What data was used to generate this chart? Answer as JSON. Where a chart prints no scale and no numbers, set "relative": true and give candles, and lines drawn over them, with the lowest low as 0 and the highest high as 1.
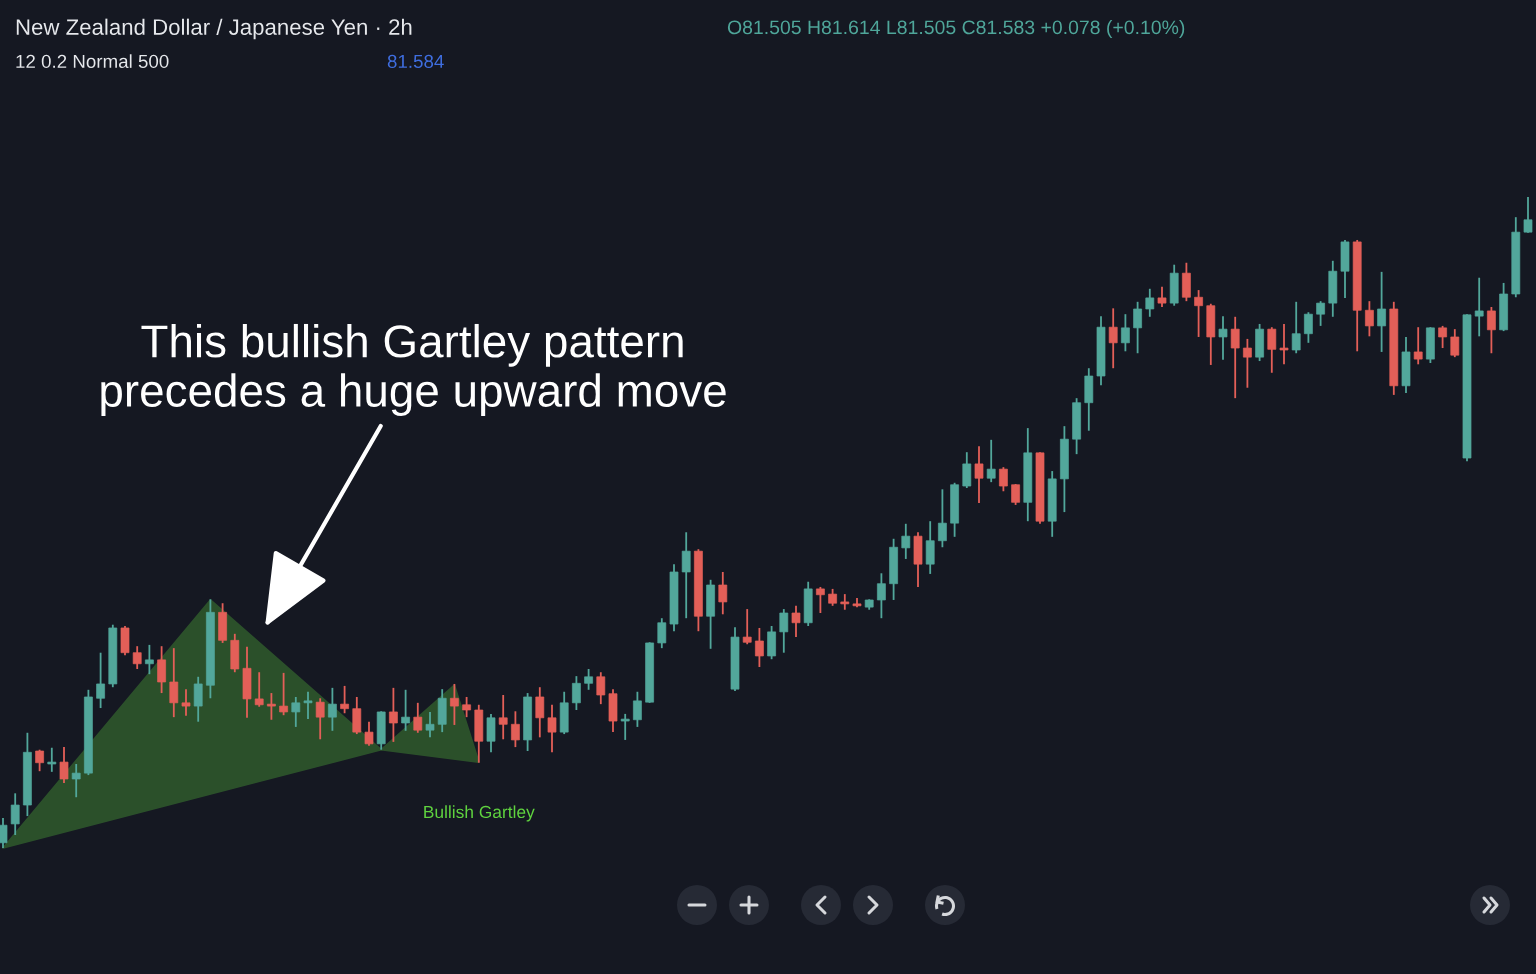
{
  "chart_data": {
    "type": "candlestick",
    "title": "New Zealand Dollar / Japanese Yen · 2h",
    "subtitle": "O81.505 H81.614 L81.505 C81.583 +0.078 (+0.10%)",
    "annotations": [
      "12 0.2 Normal 500",
      "81.584",
      "This bullish Gartley pattern\nprecedes a huge upward move"
    ],
    "relative": true,
    "categories": [
      null,
      null,
      null,
      null,
      null,
      null,
      null,
      null,
      null,
      null,
      null,
      null,
      null,
      null,
      null,
      null,
      null,
      null,
      null,
      null,
      null,
      null,
      null,
      null,
      null,
      null,
      null,
      null,
      null,
      null,
      null,
      null,
      null,
      null,
      null,
      null,
      null,
      null,
      null,
      null,
      null,
      null,
      null,
      null,
      null,
      null,
      null,
      null,
      null,
      null,
      null,
      null,
      null,
      null,
      null,
      null,
      null,
      null,
      null,
      null,
      null,
      null,
      null,
      null,
      null,
      null,
      null,
      null,
      null,
      null,
      null,
      null,
      null,
      null,
      null,
      null,
      null,
      null,
      null,
      null,
      null,
      null,
      null,
      null,
      null,
      null,
      null,
      null,
      null,
      null,
      null,
      null,
      null,
      null,
      null,
      null,
      null,
      null,
      null,
      null,
      null,
      null,
      null,
      null,
      null,
      null,
      null,
      null,
      null,
      null,
      null,
      null,
      null,
      null,
      null,
      null,
      null,
      null,
      null,
      null,
      null,
      null,
      null,
      null,
      null,
      null
    ],
    "series": [
      {
        "colors": [
          "#52a79b",
          "#52a79b",
          "#52a79b",
          "#e35f58",
          "#52a79b",
          "#e35f58",
          "#52a79b",
          "#52a79b",
          "#52a79b",
          "#52a79b",
          "#e35f58",
          "#e35f58",
          "#52a79b",
          "#e35f58",
          "#e35f58",
          "#e35f58",
          "#52a79b",
          "#52a79b",
          "#e35f58",
          "#e35f58",
          "#e35f58",
          "#e35f58",
          "#e35f58",
          "#e35f58",
          "#52a79b",
          "#52a79b",
          "#e35f58",
          "#52a79b",
          "#e35f58",
          "#e35f58",
          "#e35f58",
          "#52a79b",
          "#e35f58",
          "#52a79b",
          "#e35f58",
          "#52a79b",
          "#52a79b",
          "#e35f58",
          "#e35f58",
          "#e35f58",
          "#52a79b",
          "#e35f58",
          "#e35f58",
          "#52a79b",
          "#e35f58",
          "#e35f58",
          "#52a79b",
          "#52a79b",
          "#52a79b",
          "#e35f58",
          "#e35f58",
          "#52a79b",
          "#52a79b",
          "#52a79b",
          "#52a79b",
          "#52a79b",
          "#52a79b",
          "#e35f58",
          "#52a79b",
          "#e35f58",
          "#52a79b",
          "#e35f58",
          "#e35f58",
          "#52a79b",
          "#52a79b",
          "#e35f58",
          "#52a79b",
          "#e35f58",
          "#e35f58",
          "#e35f58",
          "#e35f58",
          "#52a79b",
          "#52a79b",
          "#52a79b",
          "#52a79b",
          "#e35f58",
          "#52a79b",
          "#52a79b",
          "#52a79b",
          "#52a79b",
          "#e35f58",
          "#52a79b",
          "#e35f58",
          "#e35f58",
          "#52a79b",
          "#e35f58",
          "#52a79b",
          "#52a79b",
          "#52a79b",
          "#52a79b",
          "#52a79b",
          "#e35f58",
          "#52a79b",
          "#52a79b",
          "#52a79b",
          "#e35f58",
          "#52a79b",
          "#e35f58",
          "#e35f58",
          "#e35f58",
          "#52a79b",
          "#e35f58",
          "#e35f58",
          "#52a79b",
          "#e35f58",
          "#e35f58",
          "#52a79b",
          "#52a79b",
          "#52a79b",
          "#52a79b",
          "#52a79b",
          "#e35f58",
          "#e35f58",
          "#52a79b",
          "#e35f58",
          "#52a79b",
          "#e35f58",
          "#52a79b",
          "#e35f58",
          "#e35f58",
          "#52a79b",
          "#52a79b",
          "#e35f58",
          "#52a79b",
          "#52a79b",
          "#52a79b"
        ],
        "ohlc": [
          [
            0.008,
            0.046,
            0,
            0.035
          ],
          [
            0.037,
            0.084,
            0.02,
            0.066
          ],
          [
            0.066,
            0.177,
            0.049,
            0.147
          ],
          [
            0.149,
            0.151,
            0.118,
            0.131
          ],
          [
            0.129,
            0.154,
            0.117,
            0.132
          ],
          [
            0.132,
            0.155,
            0.1,
            0.106
          ],
          [
            0.106,
            0.129,
            0.078,
            0.115
          ],
          [
            0.115,
            0.243,
            0.112,
            0.232
          ],
          [
            0.23,
            0.3,
            0.215,
            0.252
          ],
          [
            0.252,
            0.343,
            0.247,
            0.338
          ],
          [
            0.338,
            0.341,
            0.296,
            0.3
          ],
          [
            0.3,
            0.31,
            0.275,
            0.283
          ],
          [
            0.283,
            0.312,
            0.267,
            0.289
          ],
          [
            0.289,
            0.31,
            0.238,
            0.255
          ],
          [
            0.255,
            0.307,
            0.201,
            0.223
          ],
          [
            0.223,
            0.244,
            0.203,
            0.218
          ],
          [
            0.218,
            0.263,
            0.194,
            0.252
          ],
          [
            0.25,
            0.382,
            0.23,
            0.362
          ],
          [
            0.362,
            0.376,
            0.315,
            0.319
          ],
          [
            0.319,
            0.329,
            0.27,
            0.275
          ],
          [
            0.276,
            0.309,
            0.2,
            0.229
          ],
          [
            0.229,
            0.27,
            0.217,
            0.22
          ],
          [
            0.221,
            0.238,
            0.197,
            0.218
          ],
          [
            0.218,
            0.269,
            0.204,
            0.209
          ],
          [
            0.209,
            0.232,
            0.186,
            0.223
          ],
          [
            0.223,
            0.24,
            0.198,
            0.226
          ],
          [
            0.224,
            0.23,
            0.167,
            0.201
          ],
          [
            0.201,
            0.246,
            0.18,
            0.221
          ],
          [
            0.221,
            0.249,
            0.207,
            0.214
          ],
          [
            0.214,
            0.232,
            0.175,
            0.178
          ],
          [
            0.178,
            0.194,
            0.157,
            0.16
          ],
          [
            0.16,
            0.21,
            0.151,
            0.209
          ],
          [
            0.209,
            0.246,
            0.163,
            0.192
          ],
          [
            0.192,
            0.243,
            0.18,
            0.201
          ],
          [
            0.201,
            0.223,
            0.177,
            0.181
          ],
          [
            0.181,
            0.209,
            0.17,
            0.19
          ],
          [
            0.19,
            0.244,
            0.178,
            0.23
          ],
          [
            0.23,
            0.252,
            0.189,
            0.218
          ],
          [
            0.22,
            0.232,
            0.201,
            0.212
          ],
          [
            0.212,
            0.22,
            0.131,
            0.164
          ],
          [
            0.164,
            0.206,
            0.147,
            0.2
          ],
          [
            0.2,
            0.235,
            0.167,
            0.19
          ],
          [
            0.19,
            0.21,
            0.155,
            0.166
          ],
          [
            0.166,
            0.238,
            0.149,
            0.232
          ],
          [
            0.232,
            0.247,
            0.17,
            0.2
          ],
          [
            0.2,
            0.22,
            0.147,
            0.178
          ],
          [
            0.178,
            0.24,
            0.175,
            0.223
          ],
          [
            0.223,
            0.264,
            0.212,
            0.253
          ],
          [
            0.253,
            0.275,
            0.243,
            0.263
          ],
          [
            0.263,
            0.27,
            0.221,
            0.235
          ],
          [
            0.237,
            0.244,
            0.178,
            0.195
          ],
          [
            0.195,
            0.206,
            0.166,
            0.198
          ],
          [
            0.197,
            0.24,
            0.186,
            0.226
          ],
          [
            0.224,
            0.316,
            0.223,
            0.315
          ],
          [
            0.315,
            0.353,
            0.307,
            0.346
          ],
          [
            0.344,
            0.436,
            0.333,
            0.424
          ],
          [
            0.424,
            0.485,
            0.353,
            0.456
          ],
          [
            0.456,
            0.459,
            0.333,
            0.356
          ],
          [
            0.356,
            0.412,
            0.306,
            0.404
          ],
          [
            0.404,
            0.424,
            0.359,
            0.378
          ],
          [
            0.244,
            0.339,
            0.241,
            0.324
          ],
          [
            0.324,
            0.367,
            0.313,
            0.316
          ],
          [
            0.318,
            0.338,
            0.278,
            0.295
          ],
          [
            0.295,
            0.341,
            0.29,
            0.332
          ],
          [
            0.332,
            0.367,
            0.3,
            0.361
          ],
          [
            0.361,
            0.372,
            0.324,
            0.346
          ],
          [
            0.346,
            0.409,
            0.341,
            0.398
          ],
          [
            0.398,
            0.401,
            0.361,
            0.389
          ],
          [
            0.39,
            0.398,
            0.372,
            0.376
          ],
          [
            0.378,
            0.39,
            0.366,
            0.375
          ],
          [
            0.375,
            0.384,
            0.37,
            0.372
          ],
          [
            0.37,
            0.382,
            0.366,
            0.381
          ],
          [
            0.381,
            0.422,
            0.353,
            0.406
          ],
          [
            0.406,
            0.475,
            0.381,
            0.462
          ],
          [
            0.461,
            0.498,
            0.444,
            0.479
          ],
          [
            0.479,
            0.485,
            0.401,
            0.436
          ],
          [
            0.436,
            0.502,
            0.421,
            0.472
          ],
          [
            0.472,
            0.551,
            0.462,
            0.499
          ],
          [
            0.499,
            0.561,
            0.478,
            0.558
          ],
          [
            0.556,
            0.608,
            0.553,
            0.59
          ],
          [
            0.59,
            0.617,
            0.53,
            0.568
          ],
          [
            0.568,
            0.627,
            0.562,
            0.582
          ],
          [
            0.582,
            0.585,
            0.548,
            0.556
          ],
          [
            0.558,
            0.559,
            0.527,
            0.531
          ],
          [
            0.531,
            0.645,
            0.502,
            0.607
          ],
          [
            0.607,
            0.608,
            0.498,
            0.502
          ],
          [
            0.502,
            0.579,
            0.478,
            0.567
          ],
          [
            0.567,
            0.648,
            0.516,
            0.628
          ],
          [
            0.628,
            0.691,
            0.605,
            0.684
          ],
          [
            0.684,
            0.737,
            0.641,
            0.725
          ],
          [
            0.725,
            0.817,
            0.711,
            0.8
          ],
          [
            0.8,
            0.829,
            0.737,
            0.776
          ],
          [
            0.776,
            0.82,
            0.763,
            0.799
          ],
          [
            0.799,
            0.839,
            0.76,
            0.828
          ],
          [
            0.828,
            0.859,
            0.816,
            0.845
          ],
          [
            0.845,
            0.862,
            0.831,
            0.837
          ],
          [
            0.837,
            0.896,
            0.833,
            0.883
          ],
          [
            0.883,
            0.899,
            0.84,
            0.846
          ],
          [
            0.846,
            0.857,
            0.785,
            0.833
          ],
          [
            0.833,
            0.836,
            0.742,
            0.785
          ],
          [
            0.785,
            0.817,
            0.75,
            0.797
          ],
          [
            0.797,
            0.816,
            0.691,
            0.768
          ],
          [
            0.768,
            0.782,
            0.707,
            0.754
          ],
          [
            0.754,
            0.805,
            0.748,
            0.797
          ],
          [
            0.797,
            0.8,
            0.73,
            0.766
          ],
          [
            0.768,
            0.805,
            0.743,
            0.765
          ],
          [
            0.765,
            0.839,
            0.76,
            0.79
          ],
          [
            0.79,
            0.823,
            0.776,
            0.82
          ],
          [
            0.82,
            0.84,
            0.802,
            0.837
          ],
          [
            0.837,
            0.902,
            0.816,
            0.886
          ],
          [
            0.886,
            0.934,
            0.845,
            0.931
          ],
          [
            0.931,
            0.934,
            0.763,
            0.826
          ],
          [
            0.826,
            0.84,
            0.786,
            0.802
          ],
          [
            0.802,
            0.885,
            0.762,
            0.828
          ],
          [
            0.828,
            0.839,
            0.696,
            0.71
          ],
          [
            0.71,
            0.785,
            0.699,
            0.762
          ],
          [
            0.762,
            0.8,
            0.743,
            0.751
          ],
          [
            0.751,
            0.8,
            0.745,
            0.799
          ],
          [
            0.799,
            0.802,
            0.768,
            0.785
          ],
          [
            0.785,
            0.797,
            0.754,
            0.757
          ],
          [
            0.599,
            0.82,
            0.594,
            0.819
          ],
          [
            0.817,
            0.876,
            0.786,
            0.825
          ],
          [
            0.825,
            0.831,
            0.76,
            0.796
          ],
          [
            0.796,
            0.868,
            0.794,
            0.851
          ],
          [
            0.851,
            0.969,
            0.846,
            0.946
          ],
          [
            0.946,
            1.0,
            0.945,
            0.965
          ]
        ]
      },
      {
        "type": "area",
        "name": "Bullish Gartley",
        "color": "#5fd33f",
        "values": [
          0,
          null,
          null,
          null,
          null,
          null,
          null,
          null,
          null,
          null,
          null,
          null,
          null,
          null,
          null,
          null,
          null,
          0.381,
          null,
          null,
          null,
          null,
          null,
          null,
          null,
          null,
          null,
          null,
          null,
          null,
          null,
          0.151,
          null,
          null,
          null,
          null,
          null,
          0.25,
          null,
          0.132,
          null,
          null,
          null,
          null,
          null,
          null,
          null,
          null,
          null,
          null,
          null,
          null,
          null,
          null,
          null,
          null,
          null,
          null,
          null,
          null,
          null,
          null,
          null,
          null,
          null,
          null,
          null,
          null,
          null,
          null,
          null,
          null,
          null,
          null,
          null,
          null,
          null,
          null,
          null,
          null,
          null,
          null,
          null,
          null,
          null,
          null,
          null,
          null,
          null,
          null,
          null,
          null,
          null,
          null,
          null,
          null,
          null,
          null,
          null,
          null,
          null,
          null,
          null,
          null,
          null,
          null,
          null,
          null,
          null,
          null,
          null,
          null,
          null,
          null,
          null,
          null,
          null,
          null,
          null,
          null,
          null,
          null,
          null,
          null,
          null,
          null
        ]
      }
    ]
  }
}
